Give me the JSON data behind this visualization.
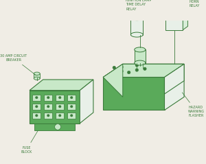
{
  "bg_color": "#f0ede5",
  "line_color": "#3a7a3a",
  "fill_green": "#5aaa5a",
  "fill_light": "#c8e8c8",
  "fill_white": "#e8f0e8",
  "fill_dark": "#3a7a3a",
  "text_color": "#3a7a3a",
  "labels": {
    "ignition": "IGNITION LAMP\nTIME DELAY\nRELAY",
    "horn": "HORN\nRELAY",
    "circuit_breaker": "30 AMP CIRCUIT\nBREAKER",
    "fuse_block": "FUSE\nBLOCK",
    "hazard": "HAZARD\nWARNING\nFLASHER"
  }
}
